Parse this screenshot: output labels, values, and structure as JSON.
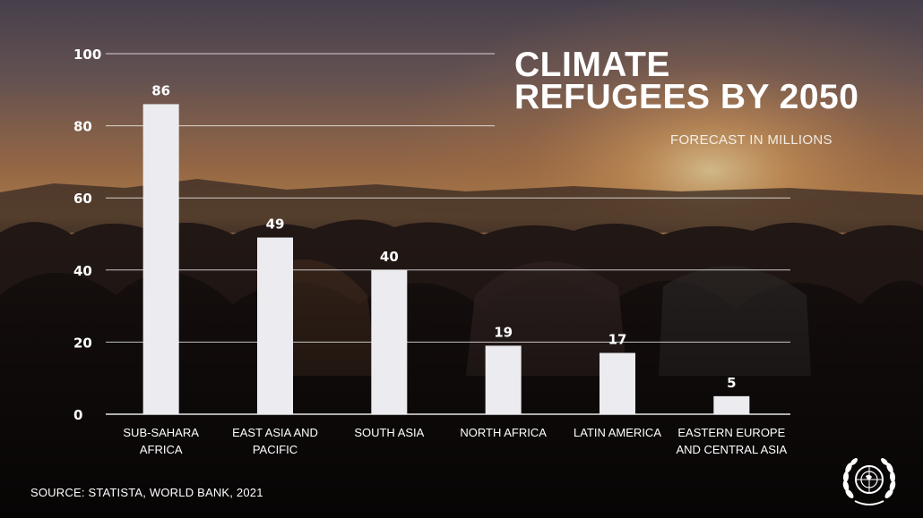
{
  "title": [
    "CLIMATE",
    "REFUGEES BY 2050"
  ],
  "subtitle": "FORECAST IN MILLIONS",
  "source": "SOURCE: STATISTA, WORLD BANK, 2021",
  "emblem": "united-nations-emblem",
  "colors": {
    "bar": "#ececf0",
    "text": "#ffffff",
    "grid": "#ffffff"
  },
  "chart_data": {
    "type": "bar",
    "title": "CLIMATE REFUGEES BY 2050",
    "subtitle": "FORECAST IN MILLIONS",
    "categories": [
      [
        "SUB-SAHARA",
        "AFRICA"
      ],
      [
        "EAST ASIA AND",
        "PACIFIC"
      ],
      [
        "SOUTH ASIA"
      ],
      [
        "NORTH AFRICA"
      ],
      [
        "LATIN AMERICA"
      ],
      [
        "EASTERN EUROPE",
        "AND CENTRAL ASIA"
      ]
    ],
    "values": [
      86,
      49,
      40,
      19,
      17,
      5
    ],
    "data_labels": [
      "86",
      "49",
      "40",
      "19",
      "17",
      "5"
    ],
    "y_ticks": [
      "0",
      "20",
      "40",
      "60",
      "80",
      "100"
    ],
    "ylim": [
      0,
      100
    ],
    "grid": true,
    "xlabel": "",
    "ylabel": ""
  }
}
